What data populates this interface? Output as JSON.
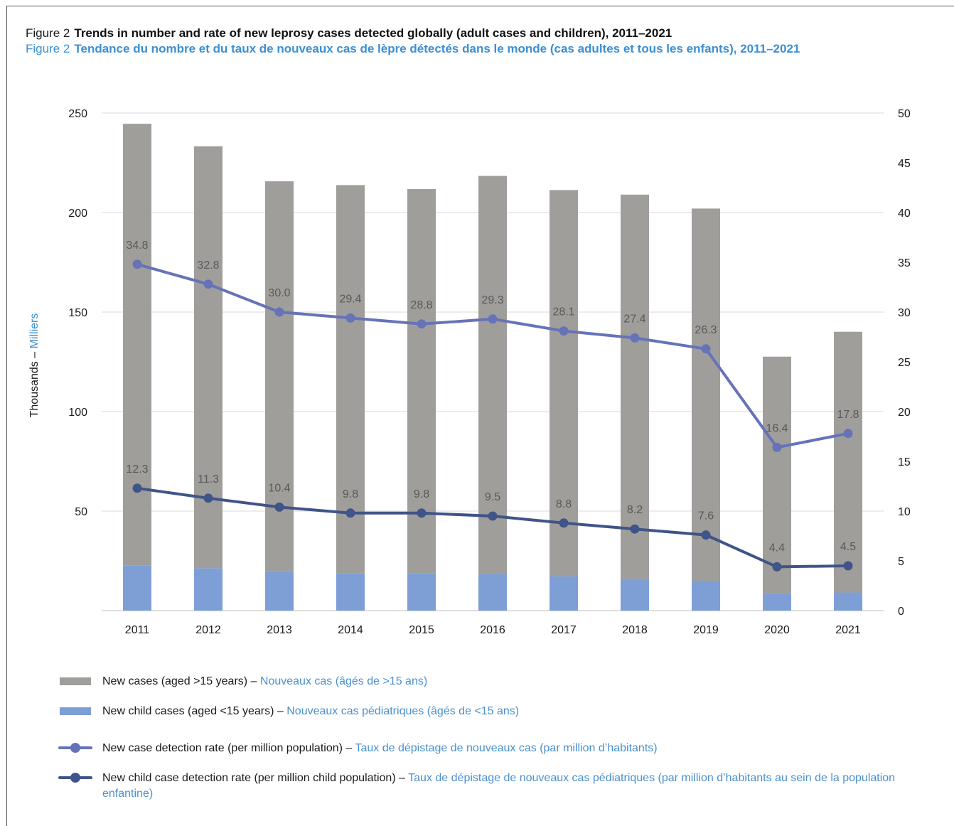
{
  "title": {
    "en_prefix": "Figure 2",
    "en_text": "Trends in number and rate of new leprosy cases detected globally (adult cases and children), 2011–2021",
    "fr_prefix": "Figure 2",
    "fr_text": "Tendance du nombre et du taux de nouveaux cas de lèpre détectés dans le monde (cas adultes et tous les enfants), 2011–2021"
  },
  "colors": {
    "adult_bar": "#a09e9b",
    "child_bar": "#7d9fd6",
    "rate_line": "#6673b8",
    "child_rate_line": "#3f5488",
    "grid": "#d9d9d9",
    "label": "#595959"
  },
  "chart_data": {
    "type": "bar",
    "categories": [
      "2011",
      "2012",
      "2013",
      "2014",
      "2015",
      "2016",
      "2017",
      "2018",
      "2019",
      "2020",
      "2021"
    ],
    "ylabel_en": "Thousands –",
    "ylabel_fr": "Milliers",
    "ylim": [
      0,
      250
    ],
    "y_ticks": [
      "50",
      "100",
      "150",
      "200",
      "250"
    ],
    "y2lim": [
      0,
      50
    ],
    "y2_ticks": [
      "0",
      "5",
      "10",
      "15",
      "20",
      "25",
      "30",
      "35",
      "40",
      "45",
      "50"
    ],
    "grid": true,
    "series": [
      {
        "name": "New cases (aged >15 years)",
        "kind": "bar-stacked",
        "values": [
          222,
          212,
          196,
          195,
          193,
          200,
          194,
          193,
          187,
          119,
          131
        ]
      },
      {
        "name": "New child cases (aged <15 years)",
        "kind": "bar-stacked",
        "values": [
          22.6,
          21.3,
          19.7,
          18.8,
          18.8,
          18.4,
          17.3,
          16.0,
          15.0,
          8.6,
          9.1
        ]
      },
      {
        "name": "New case detection rate (per million population)",
        "kind": "line",
        "axis": "right",
        "values": [
          34.8,
          32.8,
          30.0,
          29.4,
          28.8,
          29.3,
          28.1,
          27.4,
          26.3,
          16.4,
          17.8
        ],
        "labels": [
          "34.8",
          "32.8",
          "30.0",
          "29.4",
          "28.8",
          "29.3",
          "28.1",
          "27.4",
          "26.3",
          "16.4",
          "17.8"
        ]
      },
      {
        "name": "New child case detection rate (per million child population)",
        "kind": "line",
        "axis": "right",
        "values": [
          12.3,
          11.3,
          10.4,
          9.8,
          9.8,
          9.5,
          8.8,
          8.2,
          7.6,
          4.4,
          4.5
        ],
        "labels": [
          "12.3",
          "11.3",
          "10.4",
          "9.8",
          "9.8",
          "9.5",
          "8.8",
          "8.2",
          "7.6",
          "4.4",
          "4.5"
        ]
      }
    ]
  },
  "legend": [
    {
      "en": "New cases (aged >15 years) –",
      "fr": "Nouveaux cas (âgés de >15 ans)"
    },
    {
      "en": "New child cases (aged <15 years) –",
      "fr": "Nouveaux cas pédiatriques (âgés de <15 ans)"
    },
    {
      "en": "New case detection rate (per million population) –",
      "fr": "Taux de dépistage de nouveaux cas (par million d’habitants)"
    },
    {
      "en": "New child case detection rate (per million child population) –",
      "fr": "Taux de dépistage de nouveaux cas pédiatriques (par million d’habitants au sein de la population enfantine)"
    }
  ]
}
